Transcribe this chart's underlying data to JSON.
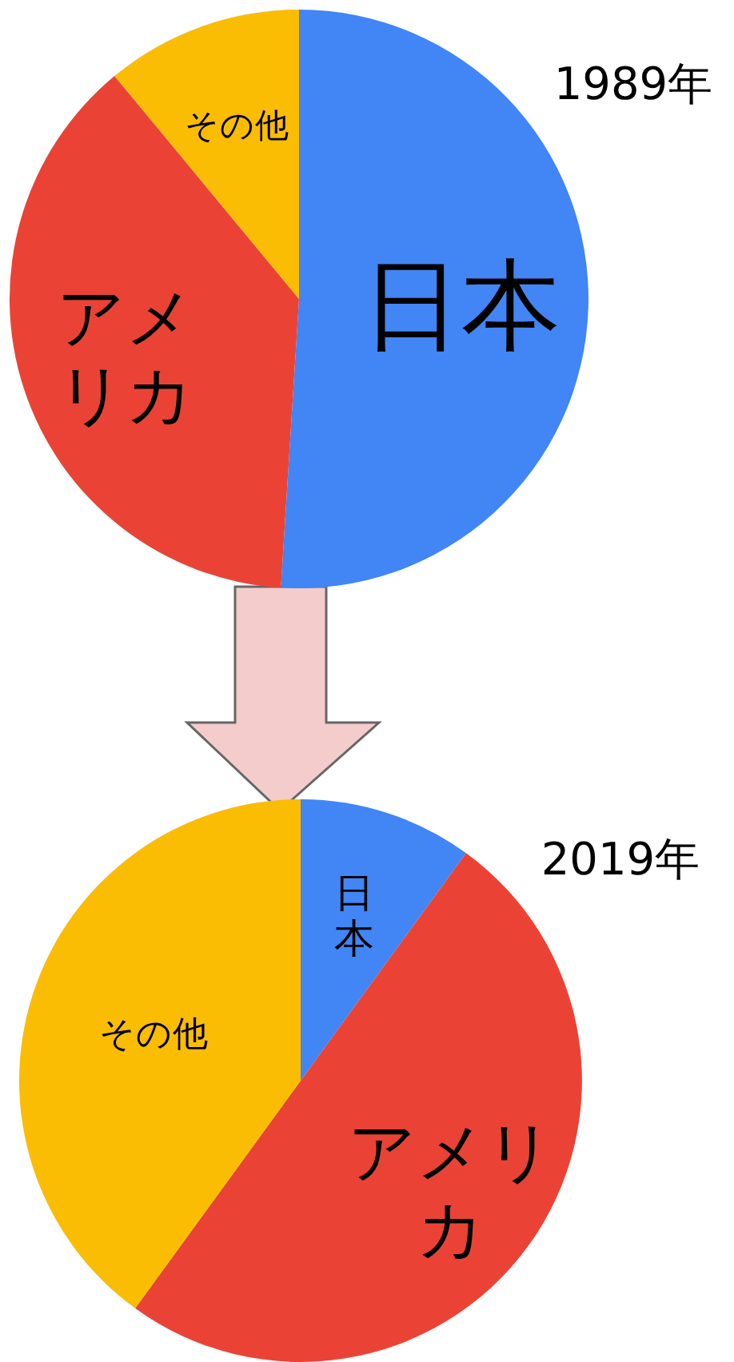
{
  "chart_data": [
    {
      "type": "pie",
      "title": "1989年",
      "categories": [
        "日本",
        "アメリカ",
        "その他"
      ],
      "values": [
        51,
        38,
        11
      ],
      "colors": [
        "#4285f4",
        "#ea4335",
        "#fbbc04"
      ]
    },
    {
      "type": "pie",
      "title": "2019年",
      "categories": [
        "日本",
        "アメリカ",
        "その他"
      ],
      "values": [
        10,
        50,
        40
      ],
      "colors": [
        "#4285f4",
        "#ea4335",
        "#fbbc04"
      ]
    }
  ]
}
